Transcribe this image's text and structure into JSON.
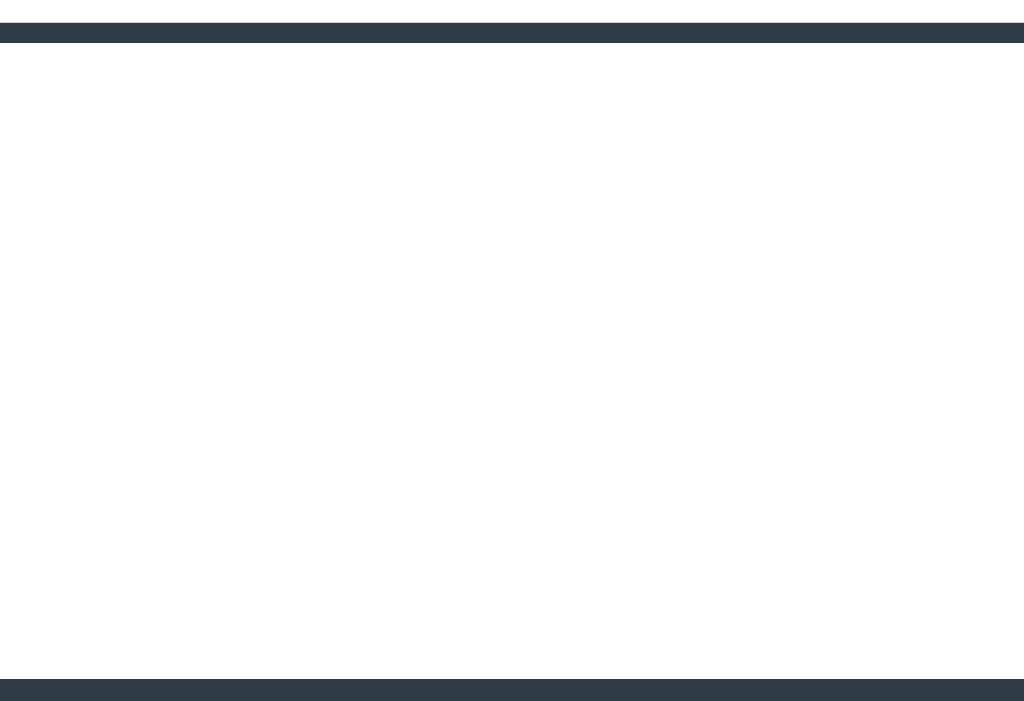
{
  "title": "",
  "menu": [],
  "status": ""
}
